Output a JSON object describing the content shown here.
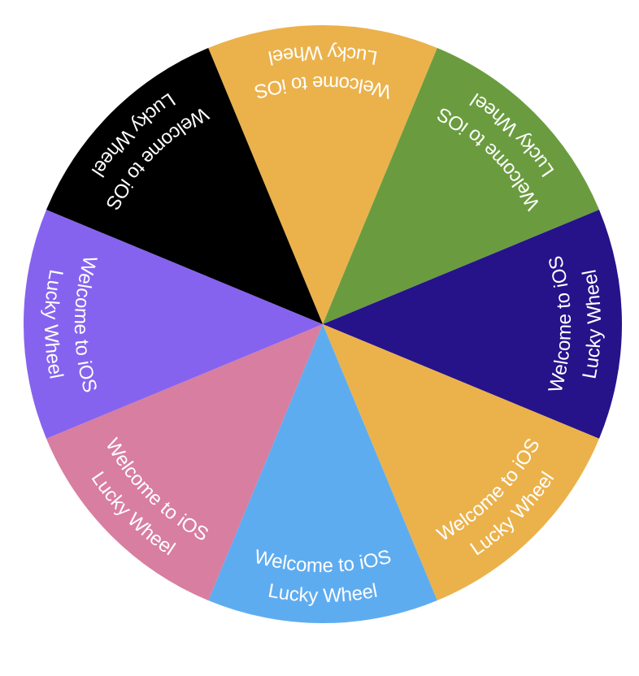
{
  "wheel": {
    "segments": [
      {
        "color": "#EBB24B",
        "line1": "Welcome to iOS",
        "line2": "Lucky Wheel"
      },
      {
        "color": "#6A9C3F",
        "line1": "Welcome to iOS",
        "line2": "Lucky Wheel"
      },
      {
        "color": "#26138A",
        "line1": "Welcome to iOS",
        "line2": "Lucky Wheel"
      },
      {
        "color": "#EBB24B",
        "line1": "Welcome to iOS",
        "line2": "Lucky Wheel"
      },
      {
        "color": "#5EACF0",
        "line1": "Welcome to iOS",
        "line2": "Lucky Wheel"
      },
      {
        "color": "#D87EA0",
        "line1": "Welcome to iOS",
        "line2": "Lucky Wheel"
      },
      {
        "color": "#8663EE",
        "line1": "Welcome to iOS",
        "line2": "Lucky Wheel"
      },
      {
        "color": "#000000",
        "line1": "Welcome to iOS",
        "line2": "Lucky Wheel"
      }
    ]
  }
}
